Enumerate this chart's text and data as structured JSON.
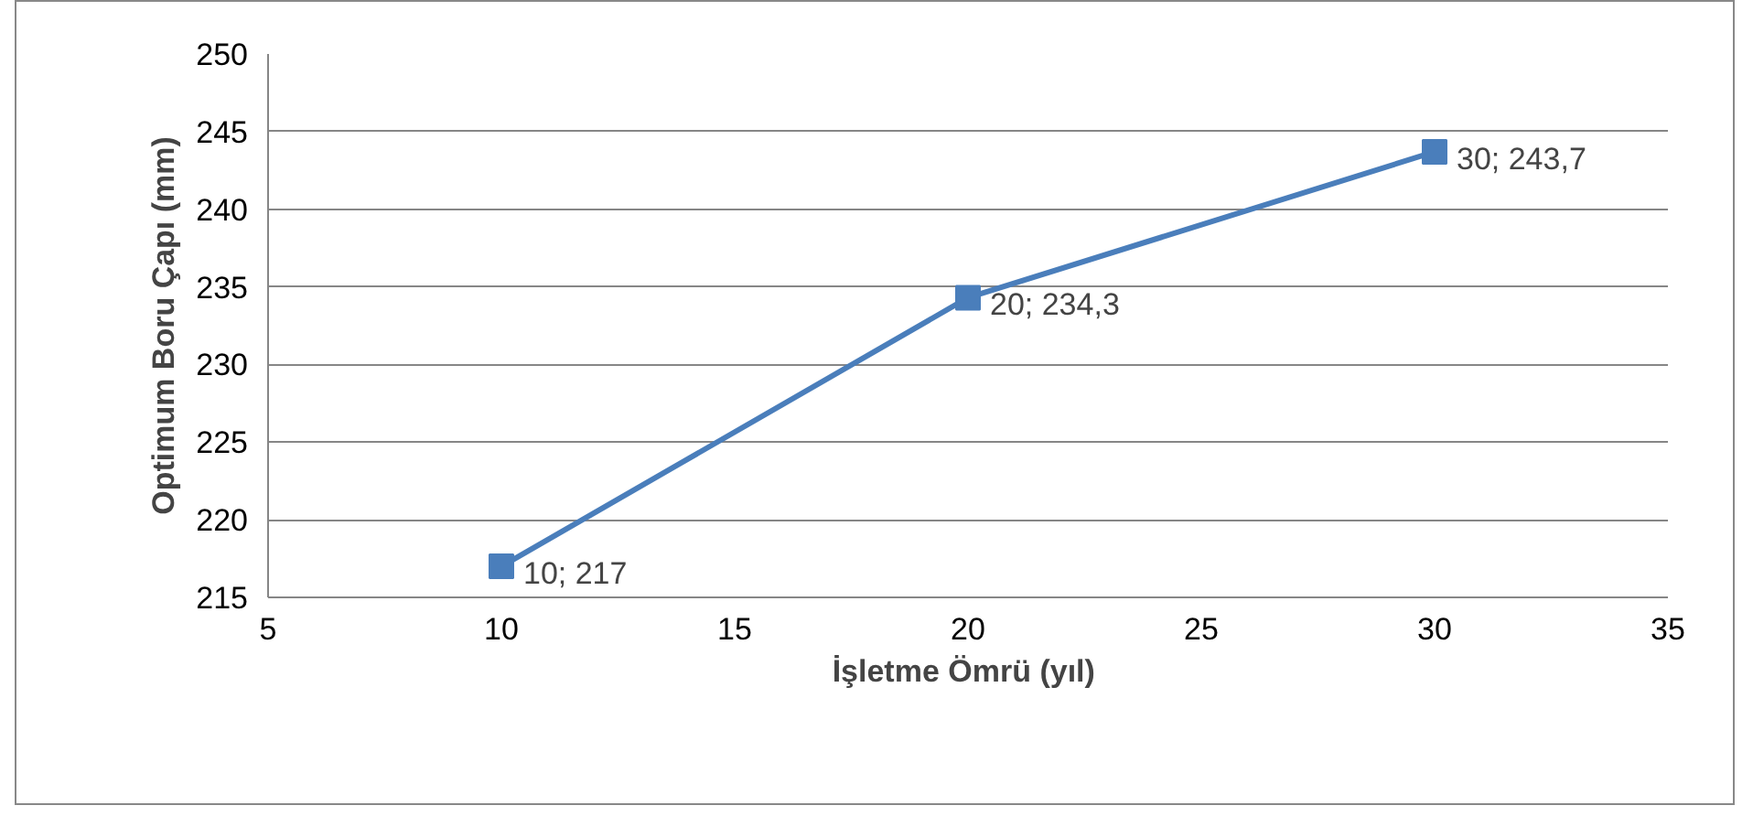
{
  "chart_data": {
    "type": "line",
    "xlabel": "İşletme  Ömrü (yıl)",
    "ylabel": "Optimum Boru Çapı (mm)",
    "x": [
      10,
      20,
      30
    ],
    "series": [
      {
        "color": "#4a7ebb",
        "values": [
          217,
          234.3,
          243.7
        ],
        "value_labels": [
          "10; 217",
          "20; 234,3",
          "30; 243,7"
        ]
      }
    ],
    "xlim": [
      5,
      35
    ],
    "xticks": [
      5,
      10,
      15,
      20,
      25,
      30,
      35
    ],
    "ylim": [
      215,
      250
    ],
    "yticks": [
      215,
      220,
      225,
      230,
      235,
      240,
      245,
      250
    ],
    "grid": "y",
    "marker": "square",
    "line_style": "solid"
  }
}
